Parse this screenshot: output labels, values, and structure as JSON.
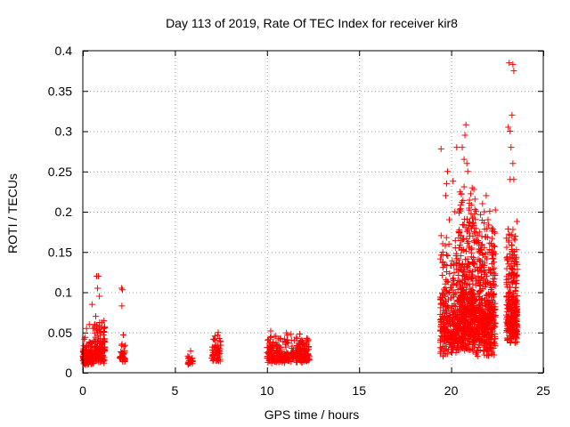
{
  "chart_data": {
    "type": "scatter",
    "title": "Day 113 of 2019, Rate Of TEC Index for receiver kir8",
    "xlabel": "GPS time / hours",
    "ylabel": "ROTI / TECUs",
    "xlim": [
      0,
      25
    ],
    "ylim": [
      0,
      0.4
    ],
    "xticks": [
      0,
      5,
      10,
      15,
      20,
      25
    ],
    "xtick_labels": [
      "0",
      "5",
      "10",
      "15",
      "20",
      "25"
    ],
    "yticks": [
      0,
      0.05,
      0.1,
      0.15,
      0.2,
      0.25,
      0.3,
      0.35,
      0.4
    ],
    "ytick_labels": [
      "0",
      "0.05",
      "0.1",
      "0.15",
      "0.2",
      "0.25",
      "0.3",
      "0.35",
      "0.4"
    ],
    "grid": true,
    "marker": "+",
    "color": "#ff0000",
    "clusters": [
      {
        "x_start": 0.0,
        "x_end": 0.6,
        "count": 140,
        "base": 0.015,
        "spread": 0.012,
        "outliers": [
          [
            0.2,
            0.055
          ],
          [
            0.35,
            0.06
          ],
          [
            0.5,
            0.085
          ],
          [
            0.55,
            0.055
          ]
        ]
      },
      {
        "x_start": 0.6,
        "x_end": 1.2,
        "count": 140,
        "base": 0.02,
        "spread": 0.018,
        "outliers": [
          [
            0.75,
            0.12
          ],
          [
            0.85,
            0.12
          ],
          [
            0.8,
            0.105
          ],
          [
            0.7,
            0.07
          ],
          [
            0.9,
            0.095
          ],
          [
            0.65,
            0.06
          ]
        ]
      },
      {
        "x_start": 2.0,
        "x_end": 2.3,
        "count": 30,
        "base": 0.018,
        "spread": 0.01,
        "outliers": [
          [
            2.1,
            0.105
          ],
          [
            2.15,
            0.103
          ],
          [
            2.12,
            0.083
          ],
          [
            2.2,
            0.047
          ]
        ]
      },
      {
        "x_start": 5.7,
        "x_end": 6.0,
        "count": 25,
        "base": 0.012,
        "spread": 0.005,
        "outliers": [
          [
            5.85,
            0.027
          ]
        ]
      },
      {
        "x_start": 7.0,
        "x_end": 7.5,
        "count": 55,
        "base": 0.02,
        "spread": 0.012,
        "outliers": [
          [
            7.35,
            0.05
          ],
          [
            7.2,
            0.04
          ]
        ]
      },
      {
        "x_start": 10.0,
        "x_end": 11.2,
        "count": 160,
        "base": 0.018,
        "spread": 0.012,
        "outliers": [
          [
            10.2,
            0.052
          ],
          [
            10.4,
            0.045
          ],
          [
            10.7,
            0.042
          ]
        ]
      },
      {
        "x_start": 11.3,
        "x_end": 12.3,
        "count": 140,
        "base": 0.018,
        "spread": 0.012,
        "outliers": [
          [
            11.6,
            0.044
          ],
          [
            11.9,
            0.04
          ]
        ]
      },
      {
        "x_start": 19.4,
        "x_end": 20.4,
        "count": 300,
        "base": 0.045,
        "spread": 0.05,
        "outliers": [
          [
            19.45,
            0.278
          ],
          [
            19.8,
            0.25
          ],
          [
            19.75,
            0.235
          ],
          [
            20.1,
            0.238
          ],
          [
            20.2,
            0.2
          ],
          [
            19.9,
            0.19
          ],
          [
            19.7,
            0.22
          ]
        ]
      },
      {
        "x_start": 20.4,
        "x_end": 21.3,
        "count": 450,
        "base": 0.06,
        "spread": 0.07,
        "outliers": [
          [
            20.8,
            0.308
          ],
          [
            20.6,
            0.28
          ],
          [
            20.75,
            0.295
          ],
          [
            20.7,
            0.265
          ],
          [
            20.85,
            0.26
          ],
          [
            20.9,
            0.25
          ],
          [
            20.3,
            0.28
          ]
        ]
      },
      {
        "x_start": 21.3,
        "x_end": 22.4,
        "count": 450,
        "base": 0.05,
        "spread": 0.06,
        "outliers": [
          [
            21.7,
            0.21
          ],
          [
            21.8,
            0.2
          ],
          [
            22.0,
            0.19
          ],
          [
            22.2,
            0.18
          ],
          [
            21.9,
            0.22
          ],
          [
            22.3,
            0.15
          ]
        ]
      },
      {
        "x_start": 23.0,
        "x_end": 23.6,
        "count": 300,
        "base": 0.06,
        "spread": 0.05,
        "outliers": [
          [
            23.15,
            0.385
          ],
          [
            23.35,
            0.383
          ],
          [
            23.4,
            0.375
          ],
          [
            23.3,
            0.32
          ],
          [
            23.1,
            0.305
          ],
          [
            23.2,
            0.3
          ],
          [
            23.25,
            0.28
          ],
          [
            23.35,
            0.26
          ],
          [
            23.4,
            0.24
          ],
          [
            23.2,
            0.24
          ]
        ]
      }
    ]
  }
}
